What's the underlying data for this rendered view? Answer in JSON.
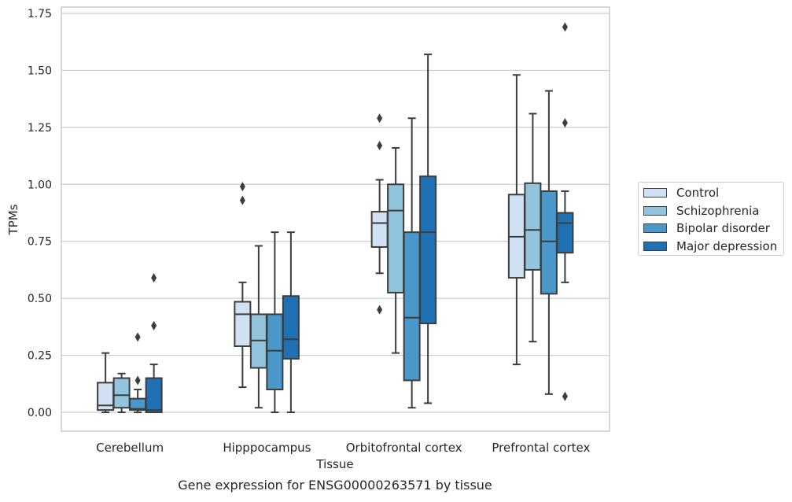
{
  "chart_data": {
    "type": "box",
    "title": "Gene expression for ENSG00000263571 by tissue",
    "xlabel": "Tissue",
    "ylabel": "TPMs",
    "ylim": [
      -0.08,
      1.77
    ],
    "yticks": [
      "0.00",
      "0.25",
      "0.50",
      "0.75",
      "1.00",
      "1.25",
      "1.50",
      "1.75"
    ],
    "categories": [
      "Cerebellum",
      "Hipppocampus",
      "Orbitofrontal cortex",
      "Prefrontal cortex"
    ],
    "grid": "horizontal",
    "legend_position": "right",
    "series": [
      {
        "name": "Control",
        "color": "#cfe1f2",
        "boxes": [
          {
            "whislo": 0.0,
            "q1": 0.01,
            "med": 0.03,
            "q3": 0.13,
            "whishi": 0.26,
            "fliers": []
          },
          {
            "whislo": 0.11,
            "q1": 0.29,
            "med": 0.43,
            "q3": 0.485,
            "whishi": 0.57,
            "fliers": [
              0.93,
              0.99
            ]
          },
          {
            "whislo": 0.61,
            "q1": 0.725,
            "med": 0.83,
            "q3": 0.88,
            "whishi": 1.02,
            "fliers": [
              0.45,
              1.17,
              1.29
            ]
          },
          {
            "whislo": 0.21,
            "q1": 0.59,
            "med": 0.77,
            "q3": 0.955,
            "whishi": 1.48,
            "fliers": []
          }
        ]
      },
      {
        "name": "Schizophrenia",
        "color": "#93c4de",
        "boxes": [
          {
            "whislo": 0.0,
            "q1": 0.02,
            "med": 0.075,
            "q3": 0.15,
            "whishi": 0.17,
            "fliers": []
          },
          {
            "whislo": 0.02,
            "q1": 0.195,
            "med": 0.315,
            "q3": 0.43,
            "whishi": 0.73,
            "fliers": []
          },
          {
            "whislo": 0.26,
            "q1": 0.525,
            "med": 0.885,
            "q3": 1.0,
            "whishi": 1.16,
            "fliers": []
          },
          {
            "whislo": 0.31,
            "q1": 0.625,
            "med": 0.8,
            "q3": 1.005,
            "whishi": 1.31,
            "fliers": []
          }
        ]
      },
      {
        "name": "Bipolar disorder",
        "color": "#4a98c9",
        "boxes": [
          {
            "whislo": 0.0,
            "q1": 0.01,
            "med": 0.015,
            "q3": 0.06,
            "whishi": 0.1,
            "fliers": [
              0.14,
              0.33
            ]
          },
          {
            "whislo": 0.0,
            "q1": 0.1,
            "med": 0.27,
            "q3": 0.43,
            "whishi": 0.79,
            "fliers": []
          },
          {
            "whislo": 0.02,
            "q1": 0.14,
            "med": 0.415,
            "q3": 0.79,
            "whishi": 1.29,
            "fliers": []
          },
          {
            "whislo": 0.08,
            "q1": 0.52,
            "med": 0.75,
            "q3": 0.97,
            "whishi": 1.41,
            "fliers": []
          }
        ]
      },
      {
        "name": "Major depression",
        "color": "#2070b4",
        "boxes": [
          {
            "whislo": 0.0,
            "q1": 0.0,
            "med": 0.01,
            "q3": 0.15,
            "whishi": 0.21,
            "fliers": [
              0.38,
              0.59
            ]
          },
          {
            "whislo": 0.0,
            "q1": 0.235,
            "med": 0.32,
            "q3": 0.51,
            "whishi": 0.79,
            "fliers": []
          },
          {
            "whislo": 0.04,
            "q1": 0.39,
            "med": 0.79,
            "q3": 1.035,
            "whishi": 1.57,
            "fliers": []
          },
          {
            "whislo": 0.57,
            "q1": 0.7,
            "med": 0.83,
            "q3": 0.875,
            "whishi": 0.97,
            "fliers": [
              0.07,
              1.27,
              1.69
            ]
          }
        ]
      }
    ]
  }
}
